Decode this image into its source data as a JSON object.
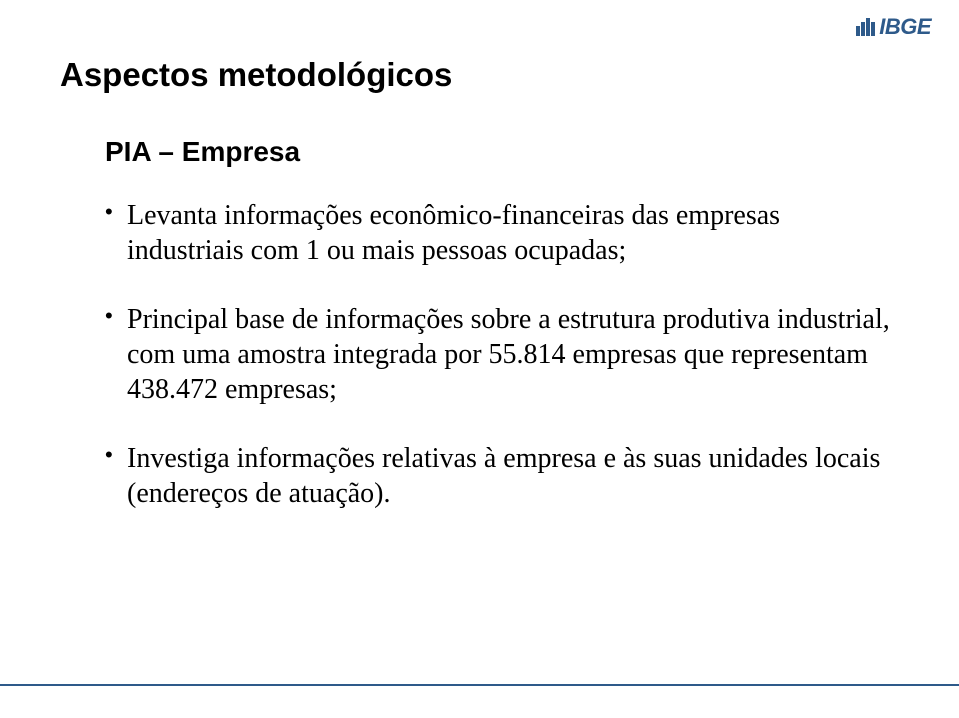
{
  "logo": {
    "text": "IBGE",
    "color": "#2e5a8a",
    "bars": [
      10,
      14,
      18,
      14
    ]
  },
  "title": "Aspectos metodológicos",
  "subtitle": "PIA – Empresa",
  "bullets": [
    "Levanta informações econômico-financeiras das empresas industriais com 1 ou mais pessoas ocupadas;",
    "Principal base de informações sobre a estrutura produtiva industrial, com uma amostra integrada por 55.814 empresas que representam 438.472 empresas;",
    "Investiga informações relativas à empresa e às suas unidades locais (endereços de atuação)."
  ],
  "style": {
    "background": "#ffffff",
    "title_color": "#000000",
    "title_fontsize": 33,
    "subtitle_fontsize": 28,
    "body_fontsize": 28,
    "body_font": "Times New Roman",
    "accent_line_color": "#2e5a8a"
  }
}
